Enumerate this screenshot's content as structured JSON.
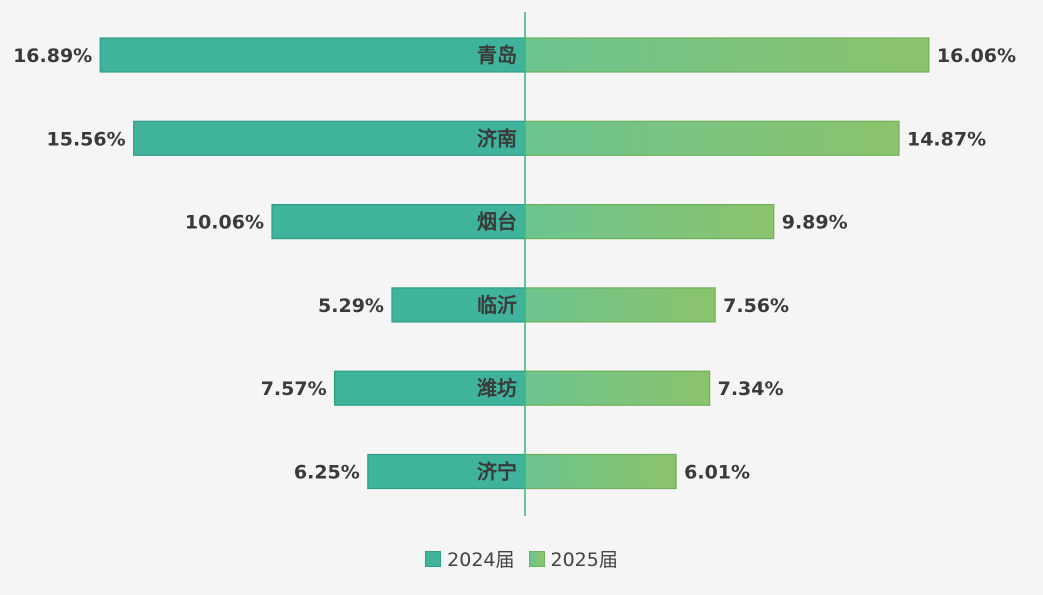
{
  "chart_data": {
    "type": "bar",
    "orientation": "horizontal-diverging",
    "categories": [
      "青岛",
      "济南",
      "烟台",
      "临沂",
      "潍坊",
      "济宁"
    ],
    "series": [
      {
        "name": "2024届",
        "side": "left",
        "color": "#3fb39c",
        "values": [
          16.89,
          15.56,
          10.06,
          5.29,
          7.57,
          6.25
        ],
        "labels": [
          "16.89%",
          "15.56%",
          "10.06%",
          "5.29%",
          "7.57%",
          "6.25%"
        ]
      },
      {
        "name": "2025届",
        "side": "right",
        "color_start": "#5fc08a",
        "color_end": "#8dc26a",
        "values": [
          16.06,
          14.87,
          9.89,
          7.56,
          7.34,
          6.01
        ],
        "labels": [
          "16.06%",
          "14.87%",
          "9.89%",
          "7.56%",
          "7.34%",
          "6.01%"
        ]
      }
    ],
    "unit": "%",
    "xlim": [
      0,
      17
    ],
    "grid": false,
    "legend_position": "bottom-center"
  },
  "colors": {
    "background": "#f5f5f5",
    "left_bar": "#3fb39c",
    "left_stroke": "#2f9c86",
    "right_bar_start": "#6cc490",
    "right_bar_end": "#8cc36c",
    "right_stroke": "#6fb05a",
    "center_line": "#3cb98b",
    "label_text": "#3a3a3a"
  }
}
